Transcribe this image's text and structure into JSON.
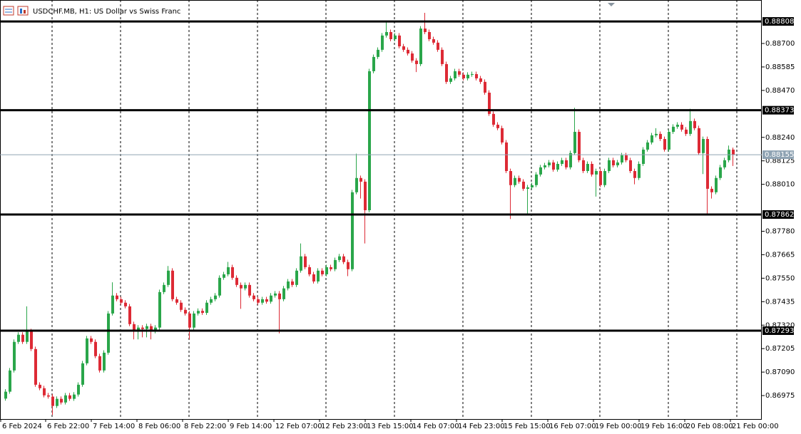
{
  "chart_data": {
    "type": "candlestick",
    "title": "USDCHF.MB, H1:  US Dollar vs Swiss Franc",
    "up_color": "#2aa64a",
    "down_color": "#dd2a35",
    "ylim": [
      0.8686,
      0.88913
    ],
    "yticks": [
      {
        "value": 0.887,
        "label": "0.88700"
      },
      0.88585,
      {
        "value": 0.8847,
        "label": "0.88470"
      },
      {
        "value": 0.8824,
        "label": "0.88240"
      },
      0.88125,
      {
        "value": 0.8801,
        "label": "0.88010"
      },
      {
        "value": 0.8778,
        "label": "0.87780"
      },
      0.87665,
      {
        "value": 0.8755,
        "label": "0.87550"
      },
      0.87435,
      {
        "value": 0.8732,
        "label": "0.87320"
      },
      0.87205,
      {
        "value": 0.8709,
        "label": "0.87090"
      },
      0.86975
    ],
    "levels": [
      0.88808,
      0.88373,
      0.87862,
      0.87293
    ],
    "price_line": 0.88155,
    "time_labels": [
      "6 Feb 2024",
      "6 Feb 22:00",
      "7 Feb 14:00",
      "8 Feb 06:00",
      "8 Feb 22:00",
      "9 Feb 14:00",
      "12 Feb 07:00",
      "12 Feb 23:00",
      "13 Feb 15:00",
      "14 Feb 07:00",
      "14 Feb 23:00",
      "15 Feb 15:00",
      "16 Feb 07:00",
      "19 Feb 00:00",
      "19 Feb 16:00",
      "20 Feb 08:00",
      "21 Feb 00:00"
    ],
    "candles": [
      [
        0.8696,
        0.87006,
        0.8695,
        0.86994
      ],
      [
        0.86994,
        0.8711,
        0.86984,
        0.87098
      ],
      [
        0.87098,
        0.8725,
        0.87088,
        0.87238
      ],
      [
        0.87238,
        0.87285,
        0.87228,
        0.87273
      ],
      [
        0.87273,
        0.87285,
        0.87228,
        0.87238
      ],
      [
        0.87238,
        0.87412,
        0.87228,
        0.8729
      ],
      [
        0.8729,
        0.87302,
        0.87193,
        0.87203
      ],
      [
        0.87203,
        0.87215,
        0.87018,
        0.87028
      ],
      [
        0.87028,
        0.8704,
        0.87001,
        0.87011
      ],
      [
        0.87011,
        0.87023,
        0.86966,
        0.86976
      ],
      [
        0.86976,
        0.86988,
        0.8696,
        0.8697
      ],
      [
        0.8697,
        0.86982,
        0.8688,
        0.86924
      ],
      [
        0.86924,
        0.86971,
        0.86914,
        0.86959
      ],
      [
        0.86959,
        0.86971,
        0.86931,
        0.86941
      ],
      [
        0.86941,
        0.86988,
        0.86931,
        0.86976
      ],
      [
        0.86976,
        0.86988,
        0.86949,
        0.86959
      ],
      [
        0.86959,
        0.86992,
        0.86949,
        0.8698
      ],
      [
        0.8698,
        0.8704,
        0.8697,
        0.87028
      ],
      [
        0.87028,
        0.87145,
        0.87018,
        0.87133
      ],
      [
        0.87133,
        0.87267,
        0.87123,
        0.87255
      ],
      [
        0.87255,
        0.87267,
        0.87228,
        0.87238
      ],
      [
        0.87238,
        0.8725,
        0.87158,
        0.87168
      ],
      [
        0.87168,
        0.8718,
        0.87088,
        0.87098
      ],
      [
        0.87098,
        0.87197,
        0.87088,
        0.87185
      ],
      [
        0.87185,
        0.87389,
        0.87175,
        0.87377
      ],
      [
        0.87377,
        0.8753,
        0.87367,
        0.87465
      ],
      [
        0.87465,
        0.87477,
        0.87437,
        0.87447
      ],
      [
        0.87447,
        0.87459,
        0.8742,
        0.8743
      ],
      [
        0.8743,
        0.87442,
        0.87402,
        0.87412
      ],
      [
        0.87412,
        0.87424,
        0.87315,
        0.87325
      ],
      [
        0.87325,
        0.87337,
        0.8725,
        0.8729
      ],
      [
        0.8729,
        0.8732,
        0.8725,
        0.87308
      ],
      [
        0.87308,
        0.8732,
        0.8726,
        0.87301
      ],
      [
        0.87301,
        0.87327,
        0.8726,
        0.87315
      ],
      [
        0.87315,
        0.87327,
        0.8725,
        0.8729
      ],
      [
        0.8729,
        0.8732,
        0.8728,
        0.87308
      ],
      [
        0.87308,
        0.87494,
        0.87298,
        0.87482
      ],
      [
        0.87482,
        0.87529,
        0.87472,
        0.87517
      ],
      [
        0.87517,
        0.8761,
        0.87507,
        0.87587
      ],
      [
        0.87587,
        0.87599,
        0.87437,
        0.87447
      ],
      [
        0.87447,
        0.87459,
        0.8742,
        0.8743
      ],
      [
        0.8743,
        0.87442,
        0.87385,
        0.87395
      ],
      [
        0.87395,
        0.87407,
        0.87367,
        0.87377
      ],
      [
        0.87377,
        0.87389,
        0.8725,
        0.87308
      ],
      [
        0.87308,
        0.87389,
        0.87298,
        0.87377
      ],
      [
        0.87377,
        0.87402,
        0.87367,
        0.8739
      ],
      [
        0.8739,
        0.87402,
        0.8737,
        0.8738
      ],
      [
        0.8738,
        0.87442,
        0.8737,
        0.8743
      ],
      [
        0.8743,
        0.87459,
        0.8742,
        0.87447
      ],
      [
        0.87447,
        0.87477,
        0.87437,
        0.87465
      ],
      [
        0.87465,
        0.87564,
        0.87455,
        0.87552
      ],
      [
        0.87552,
        0.87581,
        0.87542,
        0.87569
      ],
      [
        0.87569,
        0.8763,
        0.87559,
        0.87604
      ],
      [
        0.87604,
        0.87616,
        0.87542,
        0.87552
      ],
      [
        0.87552,
        0.87564,
        0.87507,
        0.87517
      ],
      [
        0.87517,
        0.87529,
        0.874,
        0.875
      ],
      [
        0.875,
        0.87529,
        0.8749,
        0.87517
      ],
      [
        0.87517,
        0.87529,
        0.87455,
        0.87465
      ],
      [
        0.87465,
        0.87477,
        0.87437,
        0.87447
      ],
      [
        0.87447,
        0.87459,
        0.8742,
        0.8743
      ],
      [
        0.8743,
        0.87459,
        0.8742,
        0.87447
      ],
      [
        0.87447,
        0.87459,
        0.87425,
        0.87435
      ],
      [
        0.87435,
        0.87477,
        0.87425,
        0.87465
      ],
      [
        0.87465,
        0.87487,
        0.87455,
        0.87475
      ],
      [
        0.87475,
        0.87487,
        0.8728,
        0.87447
      ],
      [
        0.87447,
        0.87512,
        0.87437,
        0.875
      ],
      [
        0.875,
        0.87546,
        0.8749,
        0.87534
      ],
      [
        0.87534,
        0.87546,
        0.87507,
        0.87517
      ],
      [
        0.87517,
        0.87599,
        0.87507,
        0.87587
      ],
      [
        0.87587,
        0.8772,
        0.87577,
        0.87657
      ],
      [
        0.87657,
        0.87669,
        0.87594,
        0.87604
      ],
      [
        0.87604,
        0.87616,
        0.87559,
        0.87569
      ],
      [
        0.87569,
        0.87581,
        0.87524,
        0.87534
      ],
      [
        0.87534,
        0.87599,
        0.87524,
        0.87587
      ],
      [
        0.87587,
        0.87599,
        0.87559,
        0.87569
      ],
      [
        0.87569,
        0.87616,
        0.87559,
        0.87604
      ],
      [
        0.87604,
        0.87616,
        0.87584,
        0.87594
      ],
      [
        0.87594,
        0.87651,
        0.87584,
        0.87639
      ],
      [
        0.87639,
        0.87669,
        0.87629,
        0.87657
      ],
      [
        0.87657,
        0.87669,
        0.87619,
        0.87629
      ],
      [
        0.87629,
        0.87641,
        0.8756,
        0.87594
      ],
      [
        0.87594,
        0.87983,
        0.87584,
        0.87971
      ],
      [
        0.87971,
        0.8816,
        0.87961,
        0.88041
      ],
      [
        0.88041,
        0.88053,
        0.8794,
        0.88023
      ],
      [
        0.88023,
        0.88035,
        0.8772,
        0.87883
      ],
      [
        0.87883,
        0.88576,
        0.87873,
        0.88564
      ],
      [
        0.88564,
        0.88646,
        0.88554,
        0.88634
      ],
      [
        0.88634,
        0.88681,
        0.88624,
        0.88669
      ],
      [
        0.88669,
        0.88751,
        0.88659,
        0.88739
      ],
      [
        0.88739,
        0.88808,
        0.88729,
        0.88756
      ],
      [
        0.88756,
        0.88768,
        0.88711,
        0.88721
      ],
      [
        0.88721,
        0.88751,
        0.88711,
        0.88739
      ],
      [
        0.88739,
        0.88751,
        0.88676,
        0.88686
      ],
      [
        0.88686,
        0.88698,
        0.88659,
        0.88669
      ],
      [
        0.88669,
        0.88681,
        0.88641,
        0.88651
      ],
      [
        0.88651,
        0.88663,
        0.88606,
        0.88616
      ],
      [
        0.88616,
        0.88628,
        0.8856,
        0.88599
      ],
      [
        0.88599,
        0.88785,
        0.88589,
        0.88773
      ],
      [
        0.88773,
        0.8885,
        0.88746,
        0.88756
      ],
      [
        0.88756,
        0.88768,
        0.88711,
        0.88721
      ],
      [
        0.88721,
        0.88733,
        0.88694,
        0.88704
      ],
      [
        0.88704,
        0.88716,
        0.88659,
        0.88669
      ],
      [
        0.88669,
        0.88681,
        0.88589,
        0.88599
      ],
      [
        0.88599,
        0.88611,
        0.88502,
        0.88512
      ],
      [
        0.88512,
        0.88541,
        0.88502,
        0.88529
      ],
      [
        0.88529,
        0.88576,
        0.88519,
        0.88564
      ],
      [
        0.88564,
        0.88576,
        0.88537,
        0.88547
      ],
      [
        0.88547,
        0.88559,
        0.88519,
        0.88529
      ],
      [
        0.88529,
        0.88559,
        0.88519,
        0.88547
      ],
      [
        0.88547,
        0.88562,
        0.88537,
        0.8855
      ],
      [
        0.8855,
        0.88562,
        0.88519,
        0.88529
      ],
      [
        0.88529,
        0.88541,
        0.88502,
        0.88512
      ],
      [
        0.88512,
        0.88524,
        0.88449,
        0.88459
      ],
      [
        0.88459,
        0.88471,
        0.88345,
        0.88355
      ],
      [
        0.88355,
        0.88367,
        0.88292,
        0.88302
      ],
      [
        0.88302,
        0.88314,
        0.88275,
        0.88285
      ],
      [
        0.88285,
        0.88297,
        0.88205,
        0.88215
      ],
      [
        0.88215,
        0.88227,
        0.88065,
        0.88075
      ],
      [
        0.88075,
        0.88087,
        0.8784,
        0.88006
      ],
      [
        0.88006,
        0.88053,
        0.87996,
        0.88041
      ],
      [
        0.88041,
        0.88053,
        0.88013,
        0.88023
      ],
      [
        0.88023,
        0.88035,
        0.87978,
        0.87988
      ],
      [
        0.87988,
        0.88007,
        0.8786,
        0.87995
      ],
      [
        0.87995,
        0.88018,
        0.87985,
        0.88006
      ],
      [
        0.88006,
        0.8807,
        0.87996,
        0.88058
      ],
      [
        0.88058,
        0.88105,
        0.88048,
        0.88093
      ],
      [
        0.88093,
        0.88115,
        0.88083,
        0.88103
      ],
      [
        0.88103,
        0.88129,
        0.88093,
        0.88117
      ],
      [
        0.88117,
        0.88129,
        0.88072,
        0.88082
      ],
      [
        0.88082,
        0.88122,
        0.88072,
        0.8811
      ],
      [
        0.8811,
        0.8814,
        0.881,
        0.88128
      ],
      [
        0.88128,
        0.8814,
        0.88083,
        0.88093
      ],
      [
        0.88093,
        0.88175,
        0.88083,
        0.88163
      ],
      [
        0.88163,
        0.88385,
        0.88153,
        0.88267
      ],
      [
        0.88267,
        0.88279,
        0.88118,
        0.88128
      ],
      [
        0.88128,
        0.8814,
        0.88065,
        0.88075
      ],
      [
        0.88075,
        0.88122,
        0.88065,
        0.8811
      ],
      [
        0.8811,
        0.88122,
        0.88048,
        0.88058
      ],
      [
        0.88058,
        0.88087,
        0.8795,
        0.88075
      ],
      [
        0.88075,
        0.88087,
        0.87996,
        0.88006
      ],
      [
        0.88006,
        0.88087,
        0.87996,
        0.88075
      ],
      [
        0.88075,
        0.8814,
        0.88065,
        0.88128
      ],
      [
        0.88128,
        0.8814,
        0.88093,
        0.88103
      ],
      [
        0.88103,
        0.88129,
        0.88093,
        0.88117
      ],
      [
        0.88117,
        0.88164,
        0.88107,
        0.88152
      ],
      [
        0.88152,
        0.88164,
        0.88118,
        0.88128
      ],
      [
        0.88128,
        0.8814,
        0.88065,
        0.88075
      ],
      [
        0.88075,
        0.88087,
        0.8801,
        0.88041
      ],
      [
        0.88041,
        0.88122,
        0.88031,
        0.8811
      ],
      [
        0.8811,
        0.88192,
        0.881,
        0.8818
      ],
      [
        0.8818,
        0.88227,
        0.8817,
        0.88215
      ],
      [
        0.88215,
        0.88262,
        0.88205,
        0.8825
      ],
      [
        0.8825,
        0.88285,
        0.8824,
        0.88257
      ],
      [
        0.88257,
        0.88269,
        0.88222,
        0.88232
      ],
      [
        0.88232,
        0.88244,
        0.8817,
        0.8818
      ],
      [
        0.8818,
        0.88279,
        0.8817,
        0.88267
      ],
      [
        0.88267,
        0.88304,
        0.88257,
        0.88292
      ],
      [
        0.88292,
        0.88314,
        0.88282,
        0.88302
      ],
      [
        0.88302,
        0.88314,
        0.88268,
        0.88278
      ],
      [
        0.88278,
        0.8829,
        0.88247,
        0.88257
      ],
      [
        0.88257,
        0.8838,
        0.88247,
        0.8832
      ],
      [
        0.8832,
        0.88332,
        0.88275,
        0.88285
      ],
      [
        0.88285,
        0.88297,
        0.88153,
        0.88163
      ],
      [
        0.88163,
        0.88244,
        0.8806,
        0.88232
      ],
      [
        0.88232,
        0.88244,
        0.87862,
        0.87988
      ],
      [
        0.87988,
        0.88,
        0.8794,
        0.87971
      ],
      [
        0.87971,
        0.88053,
        0.87961,
        0.88041
      ],
      [
        0.88041,
        0.88105,
        0.88031,
        0.88093
      ],
      [
        0.88093,
        0.8814,
        0.88083,
        0.88128
      ],
      [
        0.88128,
        0.882,
        0.88118,
        0.8818
      ],
      [
        0.8818,
        0.8819,
        0.881,
        0.88155
      ]
    ]
  }
}
